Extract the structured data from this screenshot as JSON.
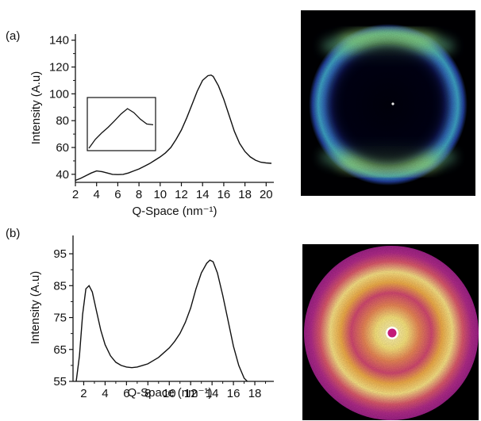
{
  "chart_data": [
    {
      "panel": "(a)",
      "type": "line",
      "xlabel": "Q-Space (nm⁻¹)",
      "ylabel": "Intensity (A.u)",
      "xlim": [
        2,
        20.5
      ],
      "ylim": [
        34,
        141
      ],
      "xticks": [
        2,
        4,
        6,
        8,
        10,
        12,
        14,
        16,
        18,
        20
      ],
      "yticks": [
        40,
        60,
        80,
        100,
        120,
        140
      ],
      "grid": false,
      "legend": "none",
      "series": [
        {
          "x": [
            2.0,
            2.5,
            3.0,
            3.5,
            4.0,
            4.5,
            5.0,
            5.5,
            6.0,
            6.5,
            7.0,
            7.5,
            8.0,
            8.5,
            9.0,
            9.5,
            10.0,
            10.5,
            11.0,
            11.5,
            12.0,
            12.5,
            13.0,
            13.5,
            14.0,
            14.5,
            14.8,
            15.0,
            15.5,
            16.0,
            16.5,
            17.0,
            17.5,
            18.0,
            18.5,
            19.0,
            19.5,
            20.0,
            20.5
          ],
          "y": [
            35.5,
            37,
            39,
            41,
            42.5,
            42,
            41,
            40,
            39.8,
            40,
            41,
            42.5,
            44,
            46,
            48,
            50.5,
            53,
            56,
            60,
            66,
            73,
            82,
            92,
            102,
            110,
            113.5,
            114,
            113,
            106,
            96,
            84,
            72,
            63,
            57,
            53,
            50.5,
            49,
            48.5,
            48.2
          ]
        }
      ],
      "inset": {
        "x": [
          0,
          0.1,
          0.2,
          0.3,
          0.4,
          0.5,
          0.6,
          0.7,
          0.8,
          0.9,
          1.0
        ],
        "y": [
          0.0,
          0.22,
          0.38,
          0.52,
          0.68,
          0.85,
          0.98,
          0.88,
          0.72,
          0.6,
          0.58
        ]
      }
    },
    {
      "panel": "(b)",
      "type": "line",
      "xlabel": "Q-Space (nm⁻¹)",
      "ylabel": "Intensity (A.u)",
      "xlim": [
        1,
        20
      ],
      "ylim": [
        55,
        98
      ],
      "xticks": [
        2,
        4,
        6,
        8,
        10,
        12,
        14,
        16,
        18
      ],
      "yticks": [
        55,
        65,
        75,
        85,
        95
      ],
      "grid": false,
      "legend": "none",
      "series": [
        {
          "x": [
            1.3,
            1.6,
            1.9,
            2.2,
            2.5,
            2.8,
            3.2,
            3.6,
            4.0,
            4.5,
            5.0,
            5.5,
            6.0,
            6.5,
            7.0,
            7.5,
            8.0,
            8.5,
            9.0,
            9.5,
            10.0,
            10.5,
            11.0,
            11.5,
            12.0,
            12.5,
            13.0,
            13.5,
            13.8,
            14.1,
            14.5,
            15.0,
            15.5,
            16.0,
            16.5,
            17.0,
            17.3
          ],
          "y": [
            55,
            63,
            76,
            84,
            85,
            83,
            77,
            71,
            66.5,
            63,
            61,
            60,
            59.5,
            59.3,
            59.5,
            60,
            60.5,
            61.5,
            62.5,
            64,
            65.5,
            67.5,
            70,
            73.5,
            78,
            84,
            89,
            92,
            93,
            92.5,
            89,
            82,
            74,
            66,
            60,
            56,
            55
          ]
        }
      ]
    }
  ],
  "images": [
    {
      "name": "saxs-pattern-a",
      "colormap": [
        "#000000",
        "#0b0b3a",
        "#1c2a8a",
        "#2f5cc8",
        "#3fa0d0",
        "#8ed86a",
        "#e6ee50"
      ]
    },
    {
      "name": "saxs-pattern-b",
      "colormap": [
        "#000000",
        "#3a0a3a",
        "#8b1e8e",
        "#c43a8f",
        "#e8604f",
        "#f5a030",
        "#fff29a"
      ]
    }
  ]
}
